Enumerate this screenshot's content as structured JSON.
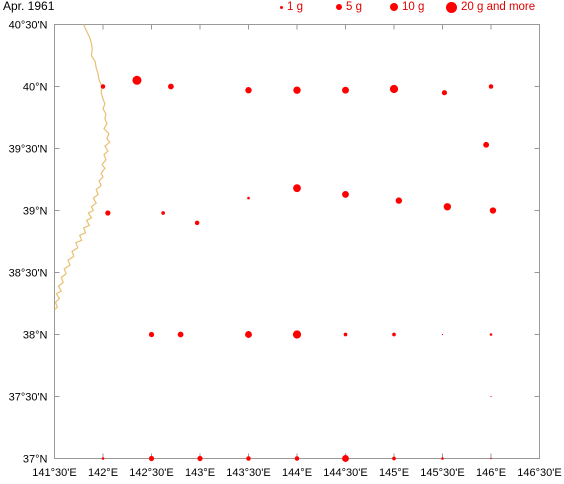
{
  "title": "Apr. 1961",
  "colors": {
    "marker": "#ff0000",
    "legend_text": "#e00000",
    "coast": "#e8c070",
    "frame": "#999999",
    "label": "#000000"
  },
  "legend": [
    {
      "label": "1 g",
      "value": 1
    },
    {
      "label": "5 g",
      "value": 5
    },
    {
      "label": "10 g",
      "value": 10
    },
    {
      "label": "20 g and more",
      "value": 20
    }
  ],
  "map": {
    "lon_range": [
      141.5,
      146.5
    ],
    "lat_range": [
      37.0,
      40.5
    ],
    "lon_ticks": [
      {
        "v": 141.5,
        "label": "141°30'E"
      },
      {
        "v": 142.0,
        "label": "142°E"
      },
      {
        "v": 142.5,
        "label": "142°30'E"
      },
      {
        "v": 143.0,
        "label": "143°E"
      },
      {
        "v": 143.5,
        "label": "143°30'E"
      },
      {
        "v": 144.0,
        "label": "144°E"
      },
      {
        "v": 144.5,
        "label": "144°30'E"
      },
      {
        "v": 145.0,
        "label": "145°E"
      },
      {
        "v": 145.5,
        "label": "145°30'E"
      },
      {
        "v": 146.0,
        "label": "146°E"
      },
      {
        "v": 146.5,
        "label": "146°30'E"
      }
    ],
    "lat_ticks": [
      {
        "v": 37.0,
        "label": "37°N"
      },
      {
        "v": 37.5,
        "label": "37°30'N"
      },
      {
        "v": 38.0,
        "label": "38°N"
      },
      {
        "v": 38.5,
        "label": "38°30'N"
      },
      {
        "v": 39.0,
        "label": "39°N"
      },
      {
        "v": 39.5,
        "label": "39°30'N"
      },
      {
        "v": 40.0,
        "label": "40°N"
      },
      {
        "v": 40.5,
        "label": "40°30'N"
      }
    ],
    "coastline": [
      [
        141.8,
        40.5
      ],
      [
        141.83,
        40.45
      ],
      [
        141.86,
        40.4
      ],
      [
        141.88,
        40.35
      ],
      [
        141.89,
        40.3
      ],
      [
        141.88,
        40.25
      ],
      [
        141.92,
        40.2
      ],
      [
        141.93,
        40.15
      ],
      [
        141.95,
        40.1
      ],
      [
        141.96,
        40.05
      ],
      [
        141.99,
        40.0
      ],
      [
        141.98,
        39.95
      ],
      [
        142.0,
        39.9
      ],
      [
        142.02,
        39.86
      ],
      [
        142.0,
        39.82
      ],
      [
        142.03,
        39.78
      ],
      [
        142.02,
        39.74
      ],
      [
        142.04,
        39.7
      ],
      [
        142.01,
        39.66
      ],
      [
        142.06,
        39.62
      ],
      [
        142.04,
        39.58
      ],
      [
        142.07,
        39.55
      ],
      [
        142.02,
        39.52
      ],
      [
        142.05,
        39.48
      ],
      [
        142.01,
        39.45
      ],
      [
        142.03,
        39.41
      ],
      [
        141.99,
        39.37
      ],
      [
        142.02,
        39.34
      ],
      [
        141.98,
        39.3
      ],
      [
        142.0,
        39.27
      ],
      [
        141.96,
        39.24
      ],
      [
        141.98,
        39.2
      ],
      [
        141.93,
        39.17
      ],
      [
        141.95,
        39.13
      ],
      [
        141.9,
        39.1
      ],
      [
        141.93,
        39.06
      ],
      [
        141.88,
        39.03
      ],
      [
        141.9,
        39.0
      ],
      [
        141.85,
        38.98
      ],
      [
        141.88,
        38.94
      ],
      [
        141.83,
        38.92
      ],
      [
        141.86,
        38.88
      ],
      [
        141.8,
        38.86
      ],
      [
        141.82,
        38.82
      ],
      [
        141.76,
        38.8
      ],
      [
        141.78,
        38.76
      ],
      [
        141.72,
        38.74
      ],
      [
        141.74,
        38.7
      ],
      [
        141.68,
        38.67
      ],
      [
        141.7,
        38.63
      ],
      [
        141.64,
        38.6
      ],
      [
        141.66,
        38.56
      ],
      [
        141.6,
        38.53
      ],
      [
        141.62,
        38.49
      ],
      [
        141.57,
        38.46
      ],
      [
        141.59,
        38.42
      ],
      [
        141.54,
        38.39
      ],
      [
        141.57,
        38.35
      ],
      [
        141.52,
        38.33
      ],
      [
        141.55,
        38.29
      ],
      [
        141.51,
        38.26
      ],
      [
        141.53,
        38.22
      ],
      [
        141.5,
        38.2
      ]
    ]
  },
  "chart_data": {
    "type": "scatter",
    "title": "Apr. 1961",
    "xlabel": "",
    "ylabel": "",
    "xlim": [
      141.5,
      146.5
    ],
    "ylim": [
      37.0,
      40.5
    ],
    "legend": [
      "1 g",
      "5 g",
      "10 g",
      "20 g and more"
    ],
    "points": [
      {
        "lon": 142.0,
        "lat": 40.0,
        "value": 3
      },
      {
        "lon": 142.35,
        "lat": 40.05,
        "value": 12
      },
      {
        "lon": 142.7,
        "lat": 40.0,
        "value": 5
      },
      {
        "lon": 143.5,
        "lat": 39.97,
        "value": 6
      },
      {
        "lon": 144.0,
        "lat": 39.97,
        "value": 8
      },
      {
        "lon": 144.5,
        "lat": 39.97,
        "value": 7
      },
      {
        "lon": 145.0,
        "lat": 39.98,
        "value": 10
      },
      {
        "lon": 145.52,
        "lat": 39.95,
        "value": 4
      },
      {
        "lon": 146.0,
        "lat": 40.0,
        "value": 3
      },
      {
        "lon": 145.95,
        "lat": 39.53,
        "value": 5
      },
      {
        "lon": 142.05,
        "lat": 38.98,
        "value": 4
      },
      {
        "lon": 142.62,
        "lat": 38.98,
        "value": 2
      },
      {
        "lon": 142.97,
        "lat": 38.9,
        "value": 3
      },
      {
        "lon": 143.5,
        "lat": 39.1,
        "value": 1
      },
      {
        "lon": 144.0,
        "lat": 39.18,
        "value": 9
      },
      {
        "lon": 144.5,
        "lat": 39.13,
        "value": 7
      },
      {
        "lon": 145.05,
        "lat": 39.08,
        "value": 6
      },
      {
        "lon": 145.55,
        "lat": 39.03,
        "value": 8
      },
      {
        "lon": 146.02,
        "lat": 39.0,
        "value": 6
      },
      {
        "lon": 142.5,
        "lat": 38.0,
        "value": 4
      },
      {
        "lon": 142.8,
        "lat": 38.0,
        "value": 5
      },
      {
        "lon": 143.5,
        "lat": 38.0,
        "value": 7
      },
      {
        "lon": 144.0,
        "lat": 38.0,
        "value": 10
      },
      {
        "lon": 144.5,
        "lat": 38.0,
        "value": 2
      },
      {
        "lon": 145.0,
        "lat": 38.0,
        "value": 2
      },
      {
        "lon": 145.5,
        "lat": 38.0,
        "value": 0.2
      },
      {
        "lon": 146.0,
        "lat": 38.0,
        "value": 1
      },
      {
        "lon": 146.0,
        "lat": 37.5,
        "value": 0.1
      },
      {
        "lon": 142.0,
        "lat": 37.0,
        "value": 1
      },
      {
        "lon": 142.5,
        "lat": 37.0,
        "value": 4
      },
      {
        "lon": 143.0,
        "lat": 37.0,
        "value": 4
      },
      {
        "lon": 143.5,
        "lat": 37.0,
        "value": 3
      },
      {
        "lon": 144.0,
        "lat": 37.0,
        "value": 3
      },
      {
        "lon": 144.5,
        "lat": 37.0,
        "value": 7
      },
      {
        "lon": 145.0,
        "lat": 37.0,
        "value": 2
      },
      {
        "lon": 145.5,
        "lat": 37.0,
        "value": 1
      },
      {
        "lon": 146.0,
        "lat": 37.0,
        "value": 0.3
      }
    ]
  }
}
